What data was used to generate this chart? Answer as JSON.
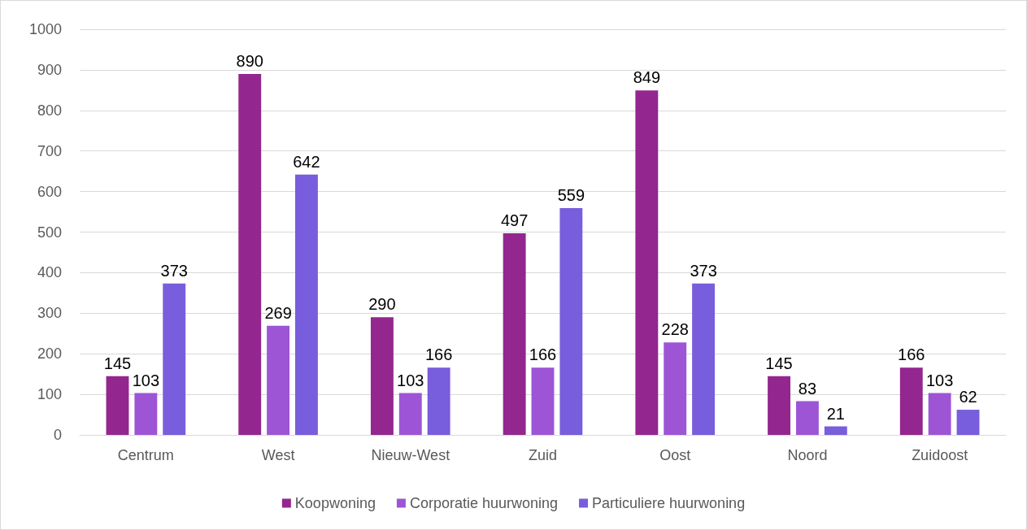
{
  "chart_data": {
    "type": "bar",
    "categories": [
      "Centrum",
      "West",
      "Nieuw-West",
      "Zuid",
      "Oost",
      "Noord",
      "Zuidoost"
    ],
    "series": [
      {
        "name": "Koopwoning",
        "color": "#93268f",
        "values": [
          145,
          890,
          290,
          497,
          849,
          145,
          166
        ]
      },
      {
        "name": "Corporatie huurwoning",
        "color": "#9d55d6",
        "values": [
          103,
          269,
          103,
          166,
          228,
          83,
          103
        ]
      },
      {
        "name": "Particuliere huurwoning",
        "color": "#785ddc",
        "values": [
          373,
          642,
          166,
          559,
          373,
          21,
          62
        ]
      }
    ],
    "ylim": [
      0,
      1000
    ],
    "yticks": [
      0,
      100,
      200,
      300,
      400,
      500,
      600,
      700,
      800,
      900,
      1000
    ],
    "grid": "y",
    "legend": "bottom",
    "data_labels": true
  }
}
